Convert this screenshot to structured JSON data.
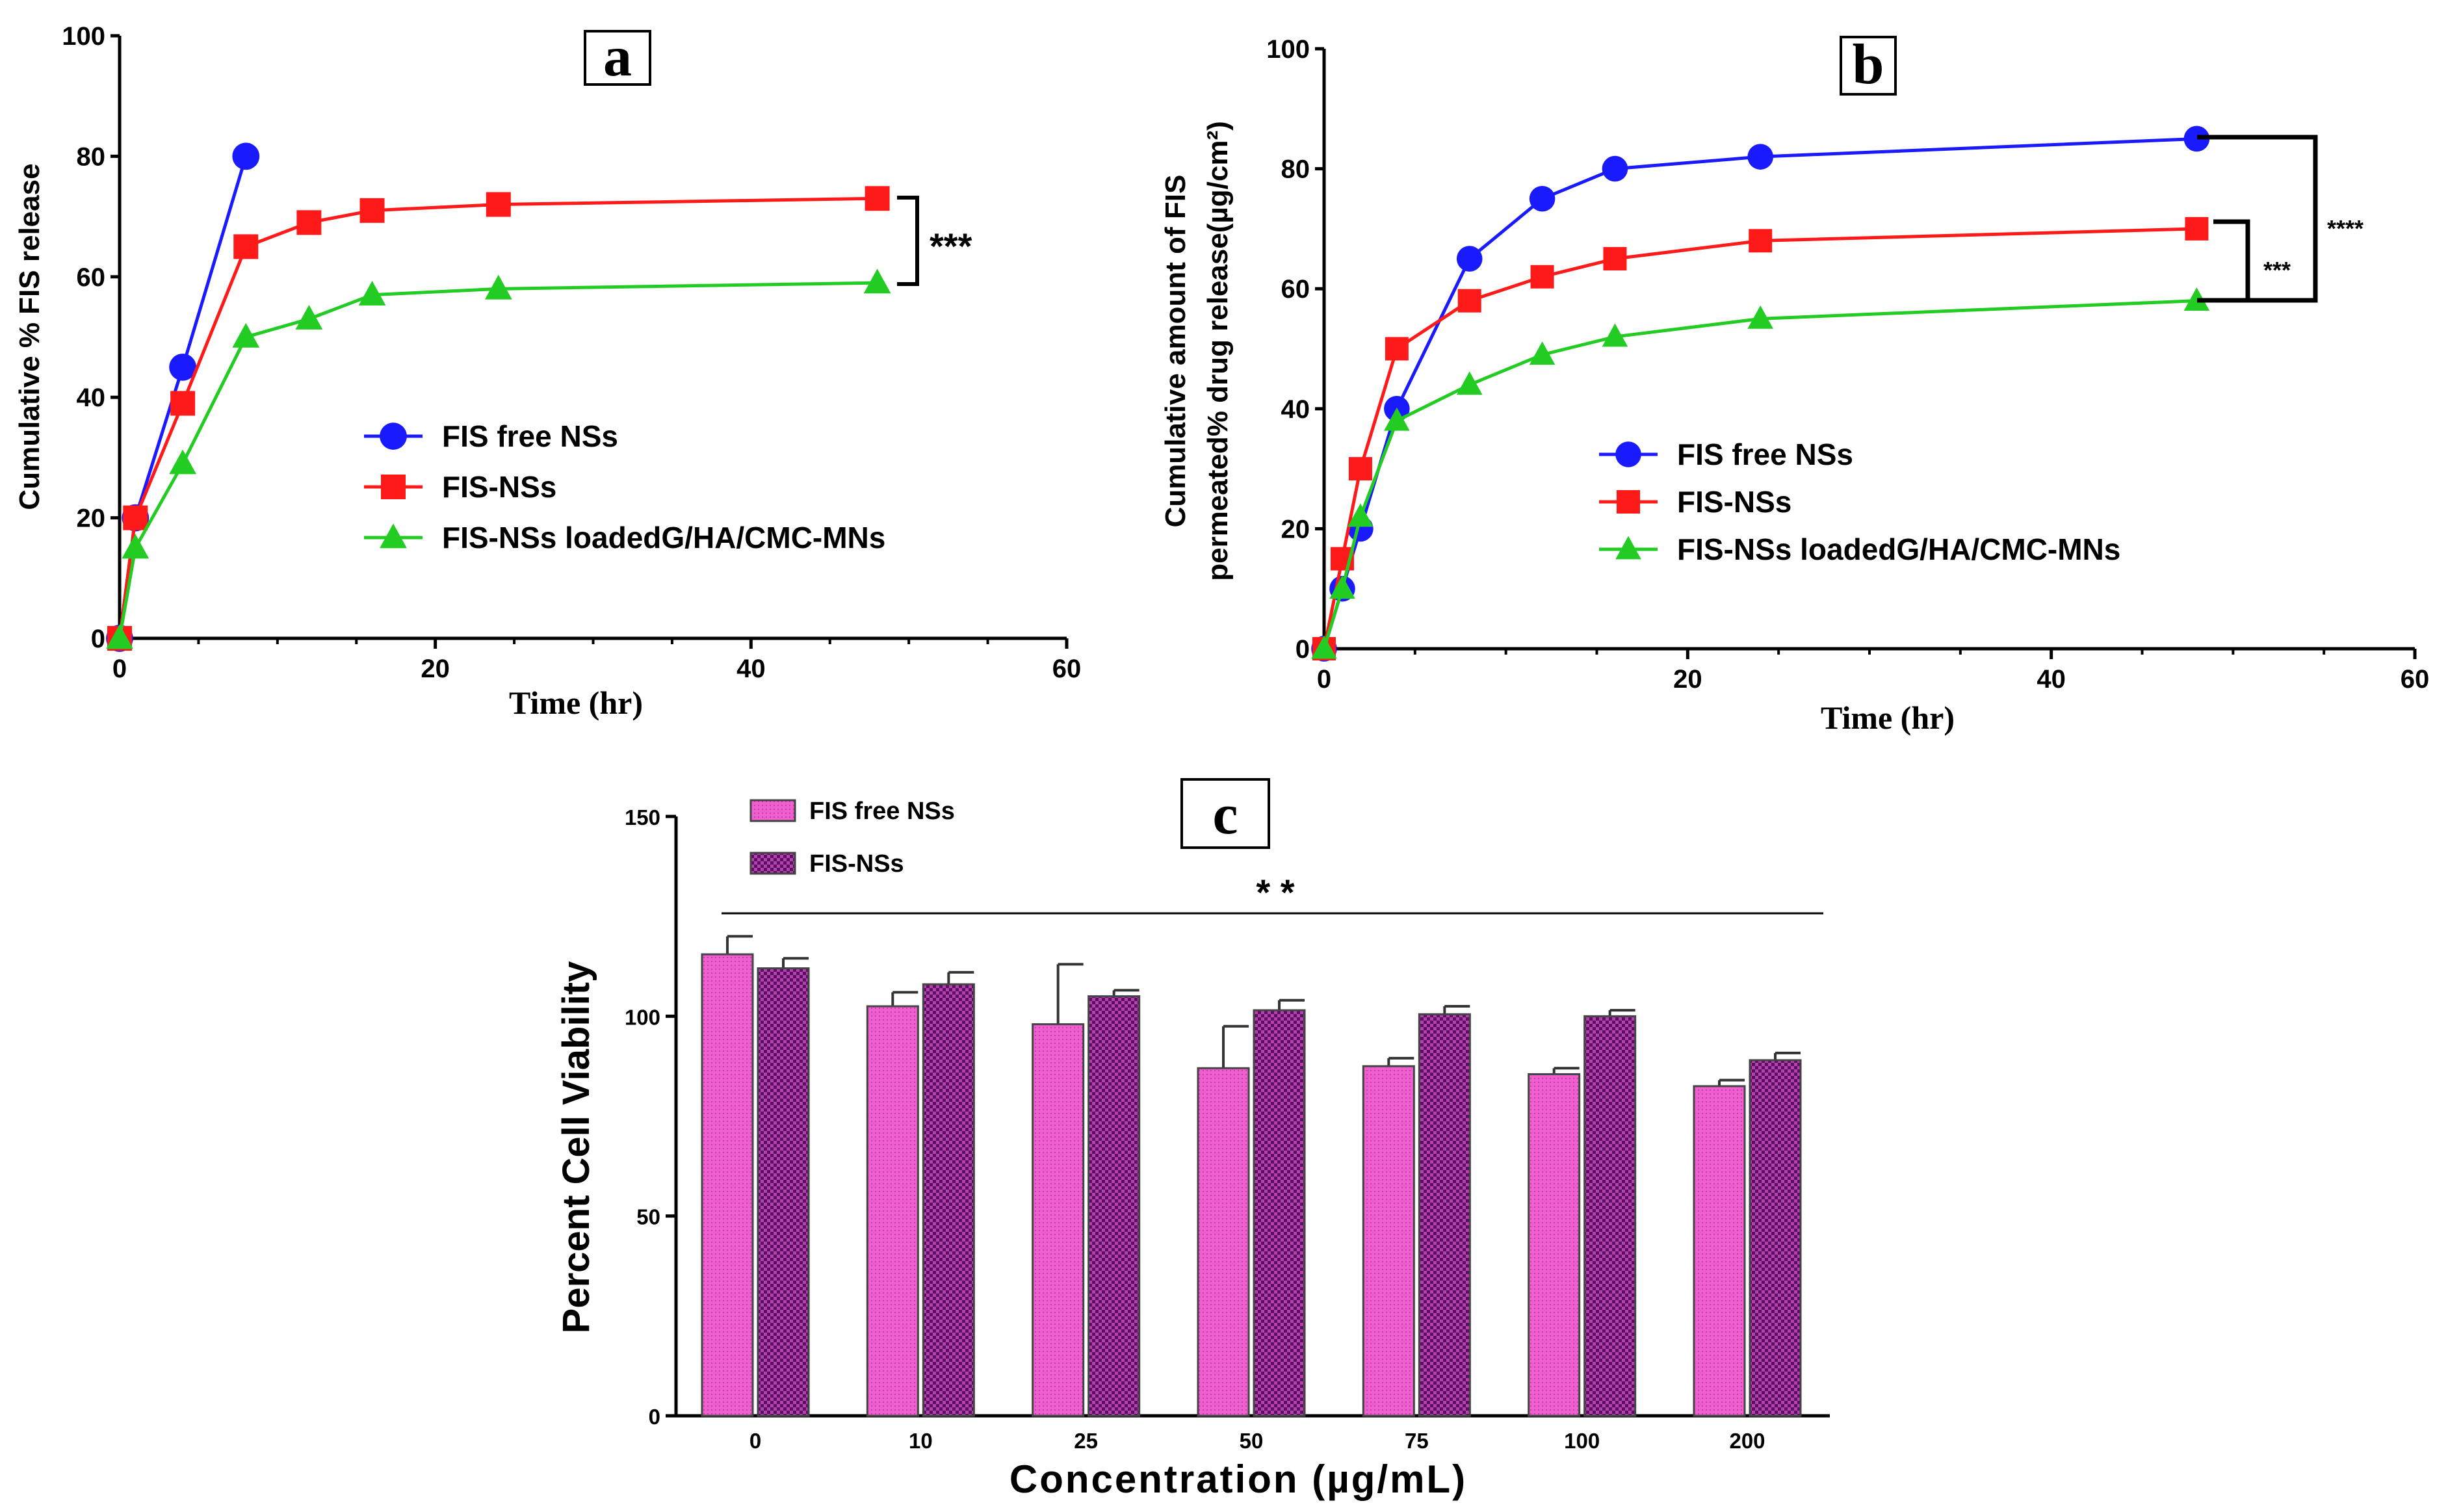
{
  "chart_data": [
    {
      "type": "line",
      "panel_label": "a",
      "xlabel": "Time (hr)",
      "ylabel": "Cumulative % FIS release",
      "xlim": [
        0,
        60
      ],
      "ylim": [
        0,
        100
      ],
      "xticks": [
        0,
        20,
        40,
        60
      ],
      "yticks": [
        0,
        20,
        40,
        60,
        80,
        100
      ],
      "significance": "***",
      "series": [
        {
          "name": "FIS free NSs",
          "color": "#1a1aff",
          "marker": "circle",
          "x": [
            0,
            1,
            4,
            8
          ],
          "y": [
            0,
            20,
            45,
            80
          ]
        },
        {
          "name": "FIS-NSs",
          "color": "#ff1a1a",
          "marker": "square",
          "x": [
            0,
            1,
            4,
            8,
            12,
            16,
            24,
            48
          ],
          "y": [
            0,
            20,
            39,
            65,
            69,
            71,
            72,
            73
          ]
        },
        {
          "name": "FIS-NSs loadedG/HA/CMC-MNs",
          "color": "#22cc22",
          "marker": "triangle",
          "x": [
            0,
            1,
            4,
            8,
            12,
            16,
            24,
            48
          ],
          "y": [
            0,
            15,
            29,
            50,
            53,
            57,
            58,
            59
          ]
        }
      ]
    },
    {
      "type": "line",
      "panel_label": "b",
      "xlabel": "Time (hr)",
      "ylabel_line1": "Cumulative amount of FIS",
      "ylabel_line2": "permeated% drug release(µg/cm²)",
      "xlim": [
        0,
        60
      ],
      "ylim": [
        0,
        100
      ],
      "xticks": [
        0,
        20,
        40,
        60
      ],
      "yticks": [
        0,
        20,
        40,
        60,
        80,
        100
      ],
      "significance": [
        "****",
        "***"
      ],
      "series": [
        {
          "name": "FIS free NSs",
          "color": "#1a1aff",
          "marker": "circle",
          "x": [
            0,
            1,
            2,
            4,
            8,
            12,
            16,
            24,
            48
          ],
          "y": [
            0,
            10,
            20,
            40,
            65,
            75,
            80,
            82,
            85
          ]
        },
        {
          "name": "FIS-NSs",
          "color": "#ff1a1a",
          "marker": "square",
          "x": [
            0,
            1,
            2,
            4,
            8,
            12,
            16,
            24,
            48
          ],
          "y": [
            0,
            15,
            30,
            50,
            58,
            62,
            65,
            68,
            70
          ]
        },
        {
          "name": "FIS-NSs loadedG/HA/CMC-MNs",
          "color": "#22cc22",
          "marker": "triangle",
          "x": [
            0,
            1,
            2,
            4,
            8,
            12,
            16,
            24,
            48
          ],
          "y": [
            0,
            10,
            22,
            38,
            44,
            49,
            52,
            55,
            58
          ]
        }
      ]
    },
    {
      "type": "bar",
      "panel_label": "c",
      "xlabel": "Concentration (µg/mL)",
      "ylabel": "Percent Cell Viability",
      "ylim": [
        0,
        150
      ],
      "yticks": [
        0,
        50,
        100,
        150
      ],
      "categories": [
        "0",
        "10",
        "25",
        "50",
        "75",
        "100",
        "200"
      ],
      "significance": "* *",
      "series": [
        {
          "name": "FIS free NSs",
          "color": "#ee55cc",
          "values": [
            115.5,
            102.5,
            98,
            87,
            87.5,
            85.5,
            82.5
          ],
          "errors": [
            4.5,
            3.5,
            15,
            10.5,
            2,
            1.5,
            1.5
          ]
        },
        {
          "name": "FIS-NSs",
          "color": "#8a1f8a",
          "values": [
            112,
            108,
            105,
            101.5,
            100.5,
            100,
            89
          ],
          "errors": [
            2.5,
            3,
            1.5,
            2.5,
            2,
            1.5,
            1.8
          ]
        }
      ]
    }
  ]
}
